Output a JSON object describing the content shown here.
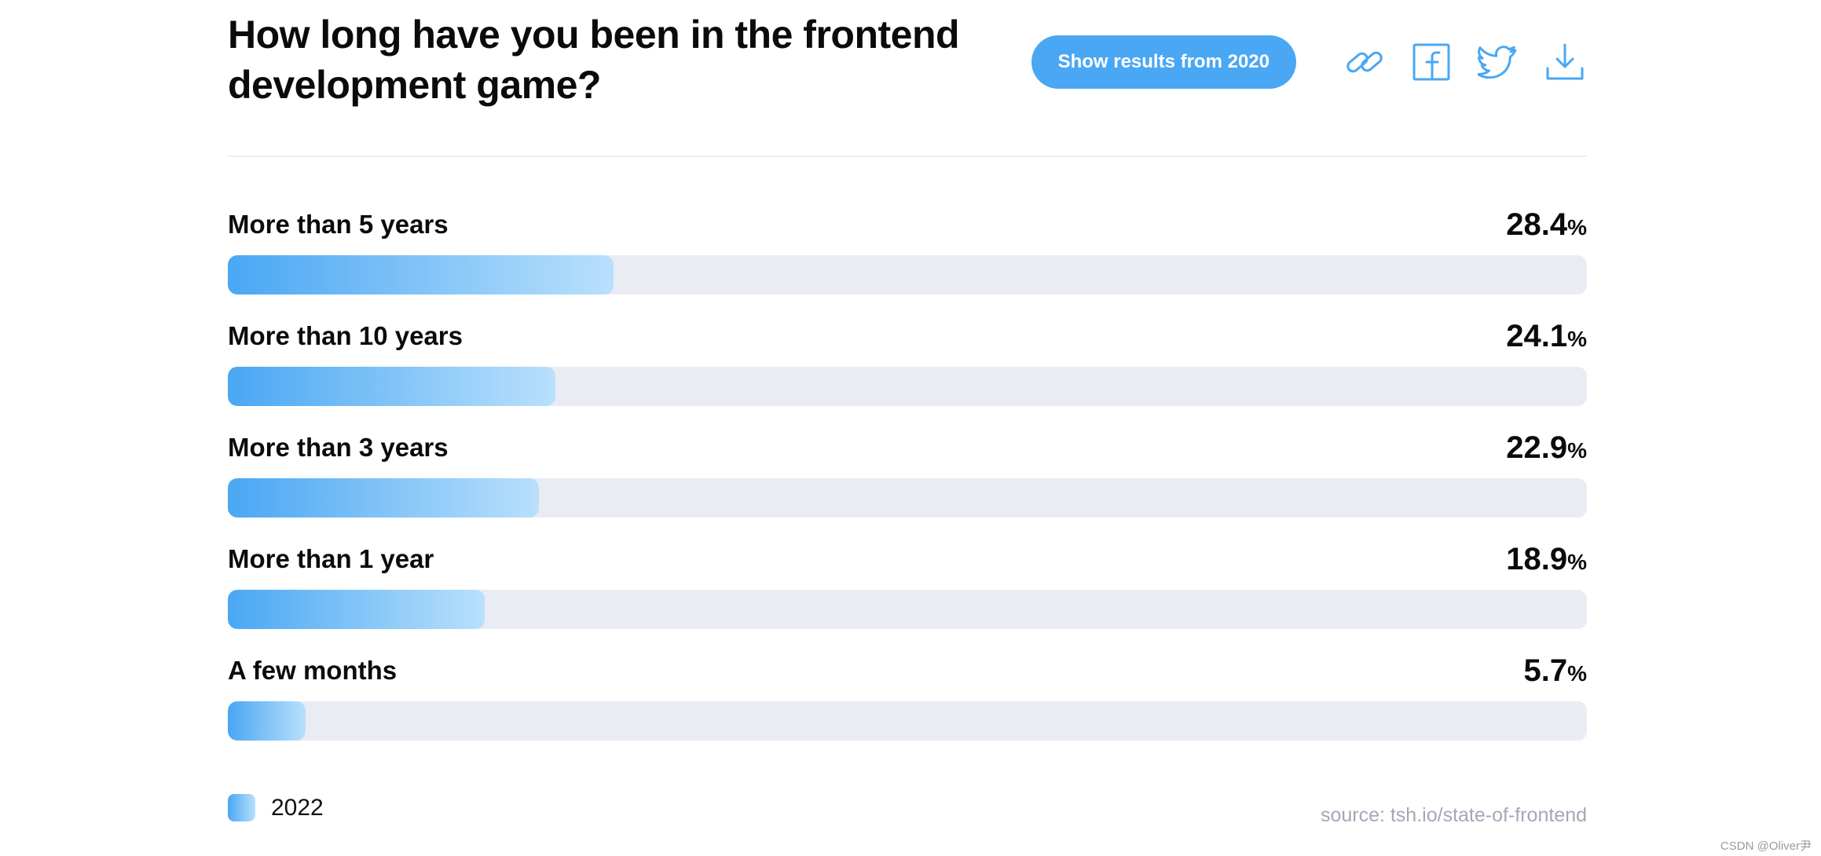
{
  "header": {
    "title": "How long have you been in the frontend development game?",
    "results_button_label": "Show results from 2020",
    "icons": [
      "link-icon",
      "facebook-icon",
      "twitter-icon",
      "download-icon"
    ]
  },
  "chart_data": {
    "type": "bar",
    "orientation": "horizontal",
    "categories": [
      "More than 5 years",
      "More than 10 years",
      "More than 3 years",
      "More than 1 year",
      "A few months"
    ],
    "series": [
      {
        "name": "2022",
        "values": [
          28.4,
          24.1,
          22.9,
          18.9,
          5.7
        ]
      }
    ],
    "value_labels": [
      "28.4",
      "24.1",
      "22.9",
      "18.9",
      "5.7"
    ],
    "unit": "%",
    "xlim": [
      0,
      100
    ],
    "legend_position": "bottom-left",
    "grid": false
  },
  "legend": {
    "label": "2022"
  },
  "source": "source: tsh.io/state-of-frontend",
  "watermark": "CSDN @Oliver尹",
  "colors": {
    "accent": "#4aa7f3",
    "fill_end": "#b9e0fc",
    "track": "#e9ecf3",
    "source_text": "#a2a8b6"
  }
}
